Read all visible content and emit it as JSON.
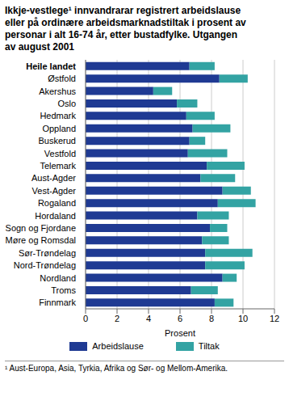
{
  "chart_data": {
    "type": "bar",
    "title": "Ikkje-vestlege¹ innvandrarar registrert arbeidslause eller på ordinære arbeidsmarknadstiltak i prosent av personar i alt 16-74 år, etter bustadfylke. Utgangen av august 2001",
    "orientation": "horizontal",
    "stacked": true,
    "grid": true,
    "x_label": "Prosent",
    "footnote": "¹ Aust-Europa, Asia, Tyrkia, Afrika og Sør- og Mellom-Amerika.",
    "categories": [
      "Heile landet",
      "Østfold",
      "Akershus",
      "Oslo",
      "Hedmark",
      "Oppland",
      "Buskerud",
      "Vestfold",
      "Telemark",
      "Aust-Agder",
      "Vest-Agder",
      "Rogaland",
      "Hordaland",
      "Sogn og Fjordane",
      "Møre og Romsdal",
      "Sør-Trøndelag",
      "Nord-Trøndelag",
      "Nordland",
      "Troms",
      "Finnmark"
    ],
    "series": [
      {
        "name": "Arbeidslause",
        "color": "#1f3a93",
        "values": [
          6.6,
          8.5,
          4.3,
          5.8,
          6.4,
          6.8,
          6.6,
          6.5,
          7.7,
          7.3,
          8.7,
          8.4,
          7.1,
          7.9,
          7.4,
          7.6,
          7.6,
          8.7,
          6.7,
          8.2
        ]
      },
      {
        "name": "Tiltak",
        "color": "#33a3a3",
        "values": [
          1.6,
          1.8,
          1.2,
          1.3,
          1.8,
          2.4,
          1.0,
          2.5,
          2.4,
          2.2,
          1.8,
          2.4,
          2.0,
          1.1,
          1.7,
          3.0,
          2.5,
          0.9,
          1.7,
          1.2
        ]
      }
    ],
    "xlim": [
      0,
      12
    ],
    "xticks": [
      0,
      2,
      4,
      6,
      8,
      10,
      12
    ]
  }
}
